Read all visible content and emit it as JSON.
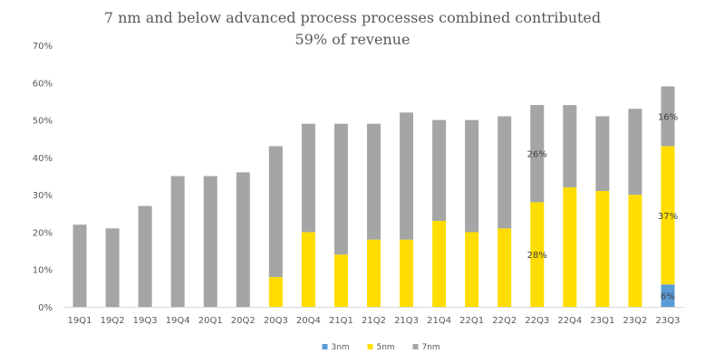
{
  "chart_data": {
    "type": "bar",
    "stacked": true,
    "title": "7 nm and below advanced process processes combined contributed 59% of revenue",
    "title_lines": [
      "7 nm and below advanced process processes combined contributed",
      "59% of revenue"
    ],
    "categories": [
      "19Q1",
      "19Q2",
      "19Q3",
      "19Q4",
      "20Q1",
      "20Q2",
      "20Q3",
      "20Q4",
      "21Q1",
      "21Q2",
      "21Q3",
      "21Q4",
      "22Q1",
      "22Q2",
      "22Q3",
      "22Q4",
      "23Q1",
      "23Q2",
      "23Q3"
    ],
    "series": [
      {
        "name": "3nm",
        "color": "#5b9bd5",
        "values": [
          0,
          0,
          0,
          0,
          0,
          0,
          0,
          0,
          0,
          0,
          0,
          0,
          0,
          0,
          0,
          0,
          0,
          0,
          6
        ]
      },
      {
        "name": "5nm",
        "color": "#ffdd00",
        "values": [
          0,
          0,
          0,
          0,
          0,
          0,
          8,
          20,
          14,
          18,
          18,
          23,
          20,
          21,
          28,
          32,
          31,
          30,
          37
        ]
      },
      {
        "name": "7nm",
        "color": "#a5a5a5",
        "values": [
          22,
          21,
          27,
          35,
          35,
          36,
          35,
          29,
          35,
          31,
          34,
          27,
          30,
          30,
          26,
          22,
          20,
          23,
          16
        ]
      }
    ],
    "data_labels": [
      {
        "category": "22Q3",
        "series": "5nm",
        "text": "28%"
      },
      {
        "category": "22Q3",
        "series": "7nm",
        "text": "26%"
      },
      {
        "category": "23Q3",
        "series": "3nm",
        "text": "6%"
      },
      {
        "category": "23Q3",
        "series": "5nm",
        "text": "37%"
      },
      {
        "category": "23Q3",
        "series": "7nm",
        "text": "16%"
      }
    ],
    "y_ticks": [
      "0%",
      "10%",
      "20%",
      "30%",
      "40%",
      "50%",
      "60%",
      "70%"
    ],
    "ylim": [
      0,
      70
    ],
    "grid": false,
    "legend_position": "bottom"
  }
}
